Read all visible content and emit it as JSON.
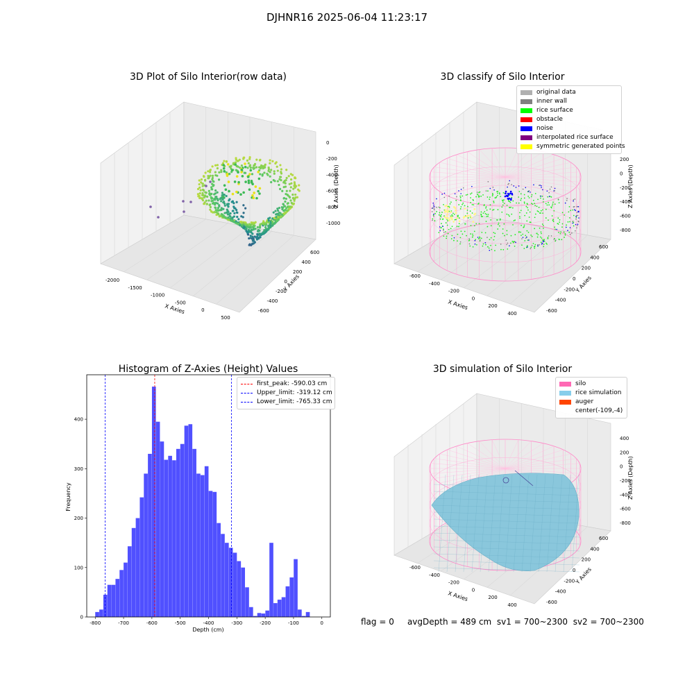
{
  "figure": {
    "suptitle": "DJHNR16 2025-06-04 11:23:17",
    "footer": {
      "flag": "flag = 0",
      "avg_depth": "avgDepth = 489 cm",
      "sv1": "sv1 = 700~2300",
      "sv2": "sv2 = 700~2300"
    }
  },
  "chart_data": [
    {
      "type": "scatter",
      "projection": "3d",
      "title": "3D Plot of Silo Interior(row data)",
      "xlabel": "X Axies",
      "ylabel": "Y Axies",
      "zlabel": "Z Axies (Depth)",
      "x_ticks": [
        "-2000",
        "-1500",
        "-1000",
        "-500",
        "0",
        "500"
      ],
      "y_ticks": [
        "-600",
        "-400",
        "-200",
        "0",
        "200",
        "400",
        "600"
      ],
      "z_ticks": [
        "0",
        "-200",
        "-400",
        "-600",
        "-800",
        "-1000"
      ],
      "colormap": "viridis"
    },
    {
      "type": "scatter",
      "projection": "3d",
      "title": "3D classify of Silo Interior",
      "xlabel": "X Axies",
      "ylabel": "Y Axies",
      "zlabel": "Z Axies (Depth)",
      "x_ticks": [
        "-600",
        "-400",
        "-200",
        "0",
        "200",
        "400"
      ],
      "y_ticks": [
        "-600",
        "-400",
        "-200",
        "0",
        "200",
        "400",
        "600"
      ],
      "z_ticks": [
        "200",
        "0",
        "-200",
        "-400",
        "-600",
        "-800"
      ],
      "legend": [
        {
          "label": "original data",
          "color": "#b0b0b0"
        },
        {
          "label": "inner wall",
          "color": "#808080"
        },
        {
          "label": "rice surface",
          "color": "#00ff00"
        },
        {
          "label": "obstacle",
          "color": "#ff0000"
        },
        {
          "label": "noise",
          "color": "#0000ff"
        },
        {
          "label": "interpolated rice surface",
          "color": "#800080"
        },
        {
          "label": "symmetric generated points",
          "color": "#ffff00"
        }
      ],
      "legend_position": "top-right"
    },
    {
      "type": "bar",
      "title": "Histogram of Z-Axies (Height) Values",
      "xlabel": "Depth (cm)",
      "ylabel": "Frequency",
      "bar_color": "#5050ff",
      "xlim": [
        -830,
        30
      ],
      "ylim": [
        0,
        490
      ],
      "x_ticks": [
        -800,
        -700,
        -600,
        -500,
        -400,
        -300,
        -200,
        -100,
        0
      ],
      "y_ticks": [
        0,
        100,
        200,
        300,
        400
      ],
      "bin_width": 14.3,
      "bins": [
        {
          "x": -800,
          "count": 10
        },
        {
          "x": -785.7,
          "count": 15
        },
        {
          "x": -771.4,
          "count": 45
        },
        {
          "x": -757.1,
          "count": 65
        },
        {
          "x": -742.8,
          "count": 65
        },
        {
          "x": -728.5,
          "count": 77
        },
        {
          "x": -714.2,
          "count": 95
        },
        {
          "x": -699.9,
          "count": 110
        },
        {
          "x": -685.6,
          "count": 143
        },
        {
          "x": -671.3,
          "count": 180
        },
        {
          "x": -657.0,
          "count": 200
        },
        {
          "x": -642.7,
          "count": 242
        },
        {
          "x": -628.4,
          "count": 290
        },
        {
          "x": -614.1,
          "count": 330
        },
        {
          "x": -599.8,
          "count": 466
        },
        {
          "x": -585.5,
          "count": 395
        },
        {
          "x": -571.2,
          "count": 355
        },
        {
          "x": -556.9,
          "count": 318
        },
        {
          "x": -542.6,
          "count": 326
        },
        {
          "x": -528.3,
          "count": 317
        },
        {
          "x": -514.0,
          "count": 340
        },
        {
          "x": -499.7,
          "count": 350
        },
        {
          "x": -485.4,
          "count": 387
        },
        {
          "x": -471.1,
          "count": 390
        },
        {
          "x": -456.8,
          "count": 340
        },
        {
          "x": -442.5,
          "count": 290
        },
        {
          "x": -428.2,
          "count": 287
        },
        {
          "x": -413.9,
          "count": 305
        },
        {
          "x": -399.6,
          "count": 255
        },
        {
          "x": -385.3,
          "count": 253
        },
        {
          "x": -371.0,
          "count": 190
        },
        {
          "x": -356.7,
          "count": 168
        },
        {
          "x": -342.4,
          "count": 150
        },
        {
          "x": -328.1,
          "count": 140
        },
        {
          "x": -313.8,
          "count": 130
        },
        {
          "x": -299.5,
          "count": 113
        },
        {
          "x": -285.2,
          "count": 100
        },
        {
          "x": -270.9,
          "count": 60
        },
        {
          "x": -256.6,
          "count": 20
        },
        {
          "x": -242.3,
          "count": 2
        },
        {
          "x": -228.0,
          "count": 8
        },
        {
          "x": -213.7,
          "count": 7
        },
        {
          "x": -199.4,
          "count": 13
        },
        {
          "x": -185.1,
          "count": 150
        },
        {
          "x": -170.8,
          "count": 28
        },
        {
          "x": -156.5,
          "count": 35
        },
        {
          "x": -142.2,
          "count": 40
        },
        {
          "x": -127.9,
          "count": 62
        },
        {
          "x": -113.6,
          "count": 80
        },
        {
          "x": -99.3,
          "count": 117
        },
        {
          "x": -85.0,
          "count": 15
        },
        {
          "x": -70.7,
          "count": 2
        },
        {
          "x": -56.4,
          "count": 10
        },
        {
          "x": -42.1,
          "count": 0
        }
      ],
      "vlines": [
        {
          "label": "first_peak: -590.03 cm",
          "x": -590.03,
          "color": "#ff0000"
        },
        {
          "label": "Upper_limit: -319.12 cm",
          "x": -319.12,
          "color": "#0000ff"
        },
        {
          "label": "Lower_limit: -765.33 cm",
          "x": -765.33,
          "color": "#0000ff"
        }
      ],
      "legend_position": "top-right"
    },
    {
      "type": "area",
      "projection": "3d",
      "title": "3D simulation of Silo Interior",
      "xlabel": "X Axies",
      "ylabel": "Y Axies",
      "zlabel": "Z Axies (Depth)",
      "x_ticks": [
        "-600",
        "-400",
        "-200",
        "0",
        "200",
        "400"
      ],
      "y_ticks": [
        "-600",
        "-400",
        "-200",
        "0",
        "200",
        "400",
        "600"
      ],
      "z_ticks": [
        "400",
        "200",
        "0",
        "-200",
        "-400",
        "-600",
        "-800"
      ],
      "legend": [
        {
          "label": "silo",
          "color": "#ff69b4"
        },
        {
          "label": "rice simulation",
          "color": "#87ceeb"
        },
        {
          "label": "auger",
          "color": "#ff4500"
        },
        {
          "label": "center(-109,-4)",
          "color": ""
        }
      ],
      "legend_position": "top-right"
    }
  ]
}
